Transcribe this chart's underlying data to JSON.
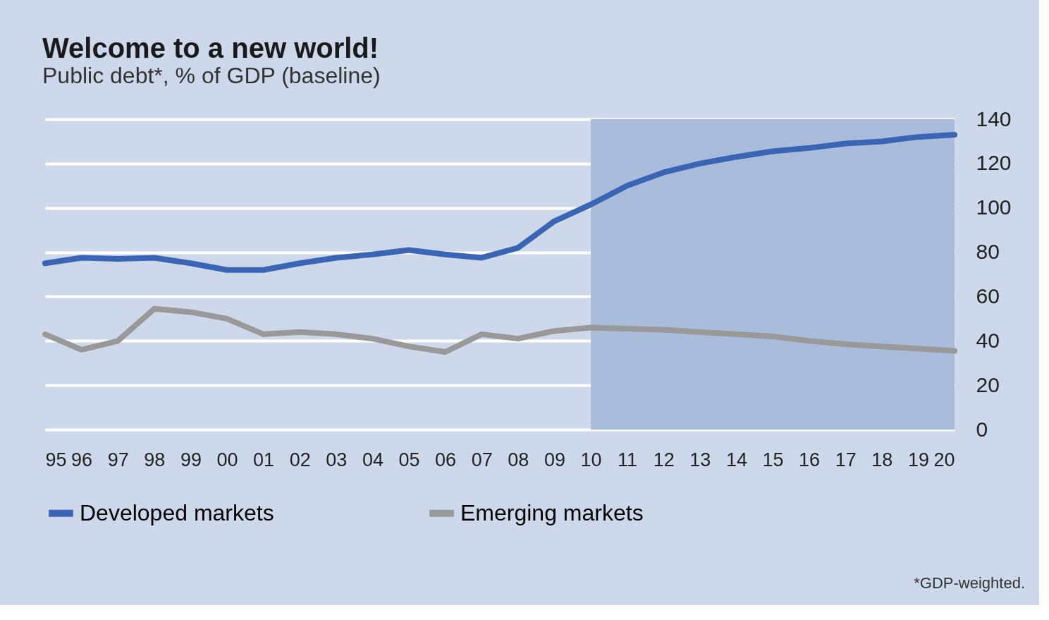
{
  "chart_data": {
    "type": "line",
    "title": "Welcome to a new world!",
    "subtitle": "Public debt*, % of GDP (baseline)",
    "x": [
      1995,
      1996,
      1997,
      1998,
      1999,
      2000,
      2001,
      2002,
      2003,
      2004,
      2005,
      2006,
      2007,
      2008,
      2009,
      2010,
      2011,
      2012,
      2013,
      2014,
      2015,
      2016,
      2017,
      2018,
      2019,
      2020
    ],
    "series": [
      {
        "name": "Developed markets",
        "color": "#3a64b4",
        "values": [
          75,
          77.5,
          77,
          77.5,
          75,
          72,
          72,
          75,
          77.5,
          79,
          81,
          79,
          77.5,
          82,
          94,
          101.5,
          110,
          116,
          120,
          123,
          125.5,
          127,
          129,
          130,
          132,
          133
        ]
      },
      {
        "name": "Emerging markets",
        "color": "#999999",
        "values": [
          43,
          36,
          40,
          54.5,
          53,
          50,
          43,
          44,
          43,
          41,
          37.5,
          35,
          43,
          41,
          44.5,
          46,
          45.5,
          45,
          44,
          43,
          42,
          40,
          38.5,
          37.5,
          36.5,
          35.5
        ]
      }
    ],
    "xlim": [
      1995,
      2020
    ],
    "xticks": [
      {
        "value": 1995,
        "label": "95"
      },
      {
        "value": 1996,
        "label": "96"
      },
      {
        "value": 1997,
        "label": "97"
      },
      {
        "value": 1998,
        "label": "98"
      },
      {
        "value": 1999,
        "label": "99"
      },
      {
        "value": 2000,
        "label": "00"
      },
      {
        "value": 2001,
        "label": "01"
      },
      {
        "value": 2002,
        "label": "02"
      },
      {
        "value": 2003,
        "label": "03"
      },
      {
        "value": 2004,
        "label": "04"
      },
      {
        "value": 2005,
        "label": "05"
      },
      {
        "value": 2006,
        "label": "06"
      },
      {
        "value": 2007,
        "label": "07"
      },
      {
        "value": 2008,
        "label": "08"
      },
      {
        "value": 2009,
        "label": "09"
      },
      {
        "value": 2010,
        "label": "10"
      },
      {
        "value": 2011,
        "label": "11"
      },
      {
        "value": 2012,
        "label": "12"
      },
      {
        "value": 2013,
        "label": "13"
      },
      {
        "value": 2014,
        "label": "14"
      },
      {
        "value": 2015,
        "label": "15"
      },
      {
        "value": 2016,
        "label": "16"
      },
      {
        "value": 2017,
        "label": "17"
      },
      {
        "value": 2018,
        "label": "18"
      },
      {
        "value": 2019,
        "label": "19"
      },
      {
        "value": 2020,
        "label": "20"
      }
    ],
    "ylim": [
      0,
      140
    ],
    "yticks": [
      0,
      20,
      40,
      60,
      80,
      100,
      120,
      140
    ],
    "bands": [
      {
        "axis": "x",
        "from": 2010,
        "to": 2020,
        "color": "#aabcdc"
      }
    ],
    "grid": "y",
    "legend": "bottom",
    "line_style": "solid",
    "annotations": [
      "*GDP-weighted."
    ]
  }
}
